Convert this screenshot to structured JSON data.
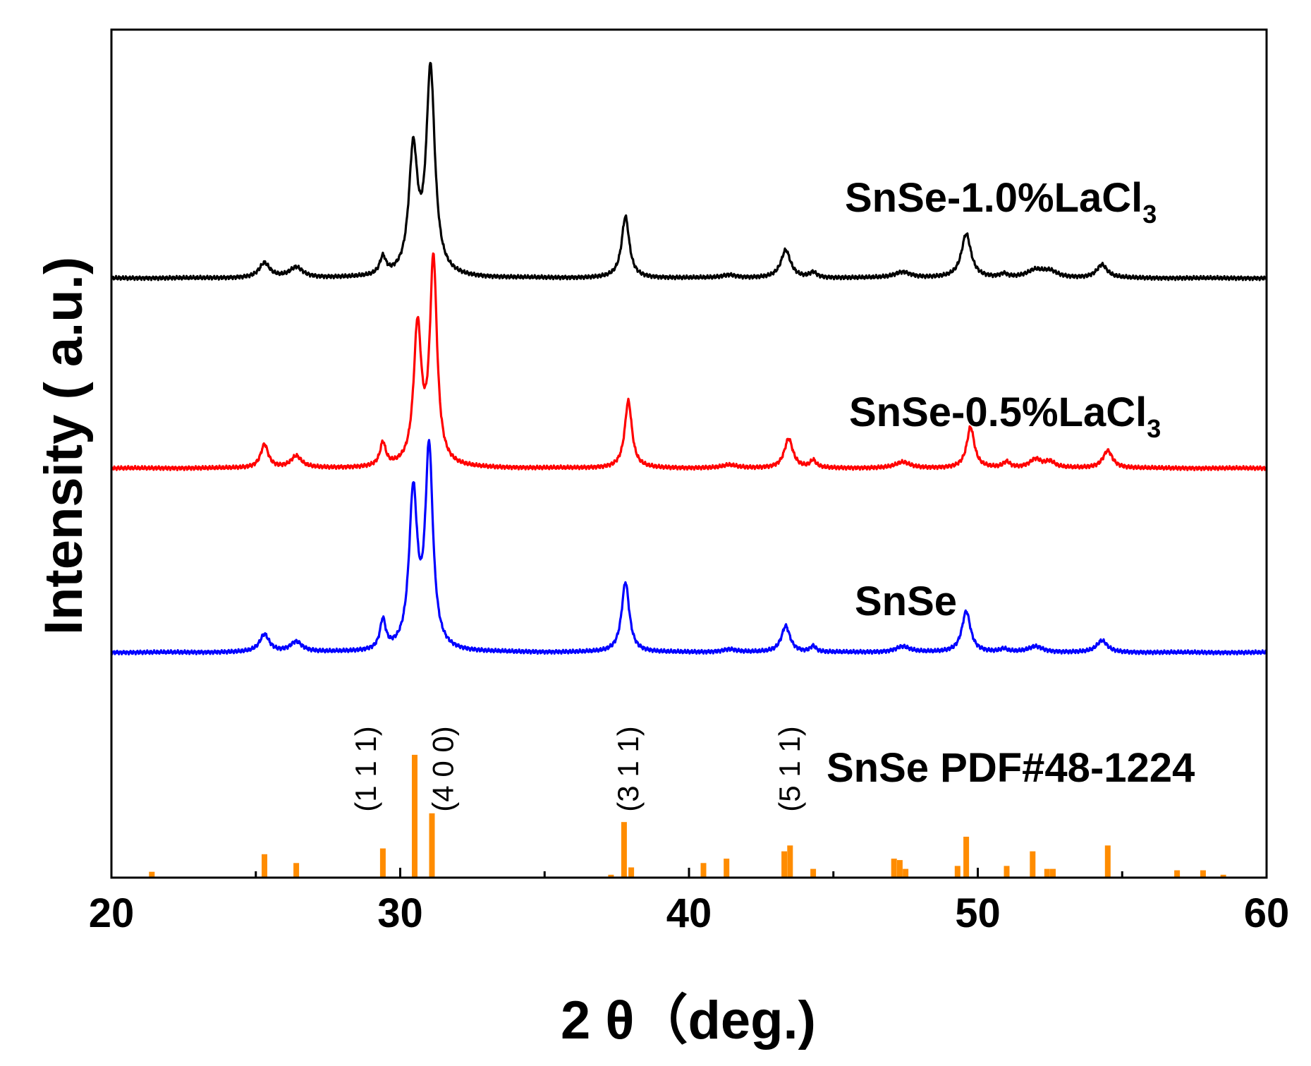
{
  "chart_data": {
    "type": "line",
    "xlabel": "2 θ（deg.)",
    "ylabel": "Intensity ( a.u.)",
    "xlim": [
      20,
      60
    ],
    "x_ticks": [
      20,
      30,
      40,
      50,
      60
    ],
    "x_ticks_minor": [
      25,
      35,
      45,
      55
    ],
    "grid": false,
    "series": [
      {
        "name": "SnSe-1.0%LaCl",
        "subscript": "3",
        "color": "#000000",
        "baseline": 0.95,
        "peaks": [
          [
            25.3,
            0.05,
            0.22
          ],
          [
            26.4,
            0.035,
            0.28
          ],
          [
            29.4,
            0.06,
            0.13
          ],
          [
            30.45,
            0.42,
            0.18
          ],
          [
            31.05,
            0.7,
            0.18
          ],
          [
            37.8,
            0.21,
            0.16
          ],
          [
            41.4,
            0.01,
            0.3
          ],
          [
            43.35,
            0.095,
            0.2
          ],
          [
            44.3,
            0.018,
            0.15
          ],
          [
            47.4,
            0.02,
            0.35
          ],
          [
            49.6,
            0.15,
            0.2
          ],
          [
            50.9,
            0.012,
            0.15
          ],
          [
            52.0,
            0.025,
            0.35
          ],
          [
            52.5,
            0.02,
            0.3
          ],
          [
            54.3,
            0.045,
            0.22
          ]
        ]
      },
      {
        "name": "SnSe-0.5%LaCl",
        "subscript": "3",
        "color": "#ff0000",
        "baseline": 0.3,
        "peaks": [
          [
            25.3,
            0.08,
            0.16
          ],
          [
            26.4,
            0.04,
            0.22
          ],
          [
            29.4,
            0.08,
            0.12
          ],
          [
            30.6,
            0.47,
            0.16
          ],
          [
            31.15,
            0.7,
            0.15
          ],
          [
            37.9,
            0.23,
            0.15
          ],
          [
            41.4,
            0.01,
            0.3
          ],
          [
            43.45,
            0.1,
            0.18
          ],
          [
            44.3,
            0.025,
            0.12
          ],
          [
            47.4,
            0.02,
            0.3
          ],
          [
            49.75,
            0.14,
            0.16
          ],
          [
            51.0,
            0.02,
            0.14
          ],
          [
            52.0,
            0.03,
            0.25
          ],
          [
            52.5,
            0.02,
            0.2
          ],
          [
            54.5,
            0.06,
            0.2
          ]
        ]
      },
      {
        "name": "SnSe",
        "color": "#0000ff",
        "baseline": -0.33,
        "peaks": [
          [
            25.3,
            0.06,
            0.2
          ],
          [
            26.4,
            0.035,
            0.25
          ],
          [
            29.4,
            0.1,
            0.12
          ],
          [
            30.45,
            0.53,
            0.17
          ],
          [
            31.0,
            0.68,
            0.16
          ],
          [
            37.8,
            0.24,
            0.16
          ],
          [
            41.4,
            0.01,
            0.3
          ],
          [
            43.35,
            0.09,
            0.18
          ],
          [
            44.3,
            0.02,
            0.12
          ],
          [
            47.4,
            0.02,
            0.3
          ],
          [
            49.6,
            0.14,
            0.18
          ],
          [
            50.9,
            0.01,
            0.15
          ],
          [
            52.0,
            0.02,
            0.3
          ],
          [
            54.3,
            0.04,
            0.22
          ]
        ]
      }
    ],
    "reference": {
      "name": "SnSe PDF#48-1224",
      "color": "#ff8c00",
      "sticks": [
        [
          21.4,
          0.02
        ],
        [
          25.3,
          0.08
        ],
        [
          26.4,
          0.05
        ],
        [
          29.4,
          0.1
        ],
        [
          30.5,
          0.42
        ],
        [
          31.1,
          0.22
        ],
        [
          37.3,
          0.01
        ],
        [
          37.75,
          0.19
        ],
        [
          38.0,
          0.035
        ],
        [
          40.5,
          0.05
        ],
        [
          41.3,
          0.065
        ],
        [
          43.3,
          0.09
        ],
        [
          43.5,
          0.11
        ],
        [
          44.3,
          0.03
        ],
        [
          47.1,
          0.065
        ],
        [
          47.3,
          0.06
        ],
        [
          47.5,
          0.03
        ],
        [
          49.3,
          0.04
        ],
        [
          49.6,
          0.14
        ],
        [
          51.0,
          0.04
        ],
        [
          51.9,
          0.09
        ],
        [
          52.4,
          0.03
        ],
        [
          52.6,
          0.03
        ],
        [
          54.5,
          0.11
        ],
        [
          56.9,
          0.025
        ],
        [
          57.8,
          0.025
        ],
        [
          58.5,
          0.01
        ]
      ],
      "hkl": [
        {
          "label": "(1 1 1)",
          "x": 29.4
        },
        {
          "label": "(4 0 0)",
          "x": 31.1
        },
        {
          "label": "(3 1 1)",
          "x": 37.8
        },
        {
          "label": "(5 1 1)",
          "x": 43.4
        }
      ]
    }
  }
}
